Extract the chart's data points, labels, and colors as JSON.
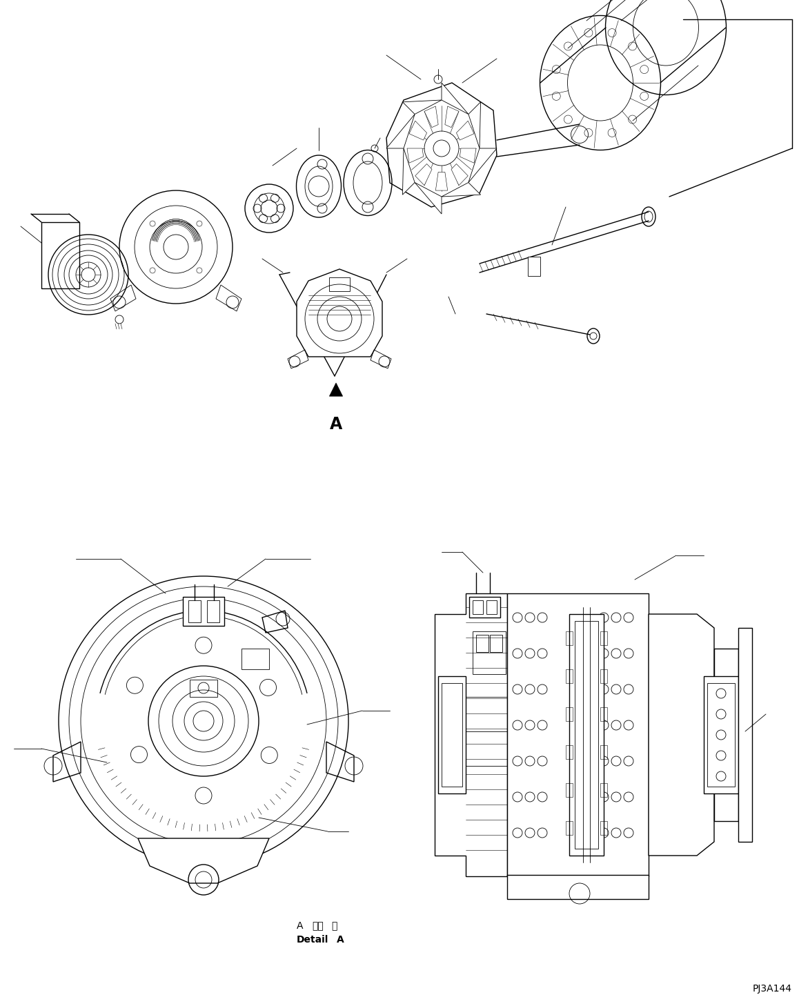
{
  "background_color": "#ffffff",
  "fig_width": 11.58,
  "fig_height": 14.58,
  "dpi": 100,
  "label_A": "A",
  "label_detail_kanji": "詳細",
  "label_fin": "細",
  "label_pj": "PJ3A144",
  "arrow_label": "A",
  "line_color": "#000000",
  "lw": 1.0,
  "tlw": 0.6,
  "vlw": 0.4
}
